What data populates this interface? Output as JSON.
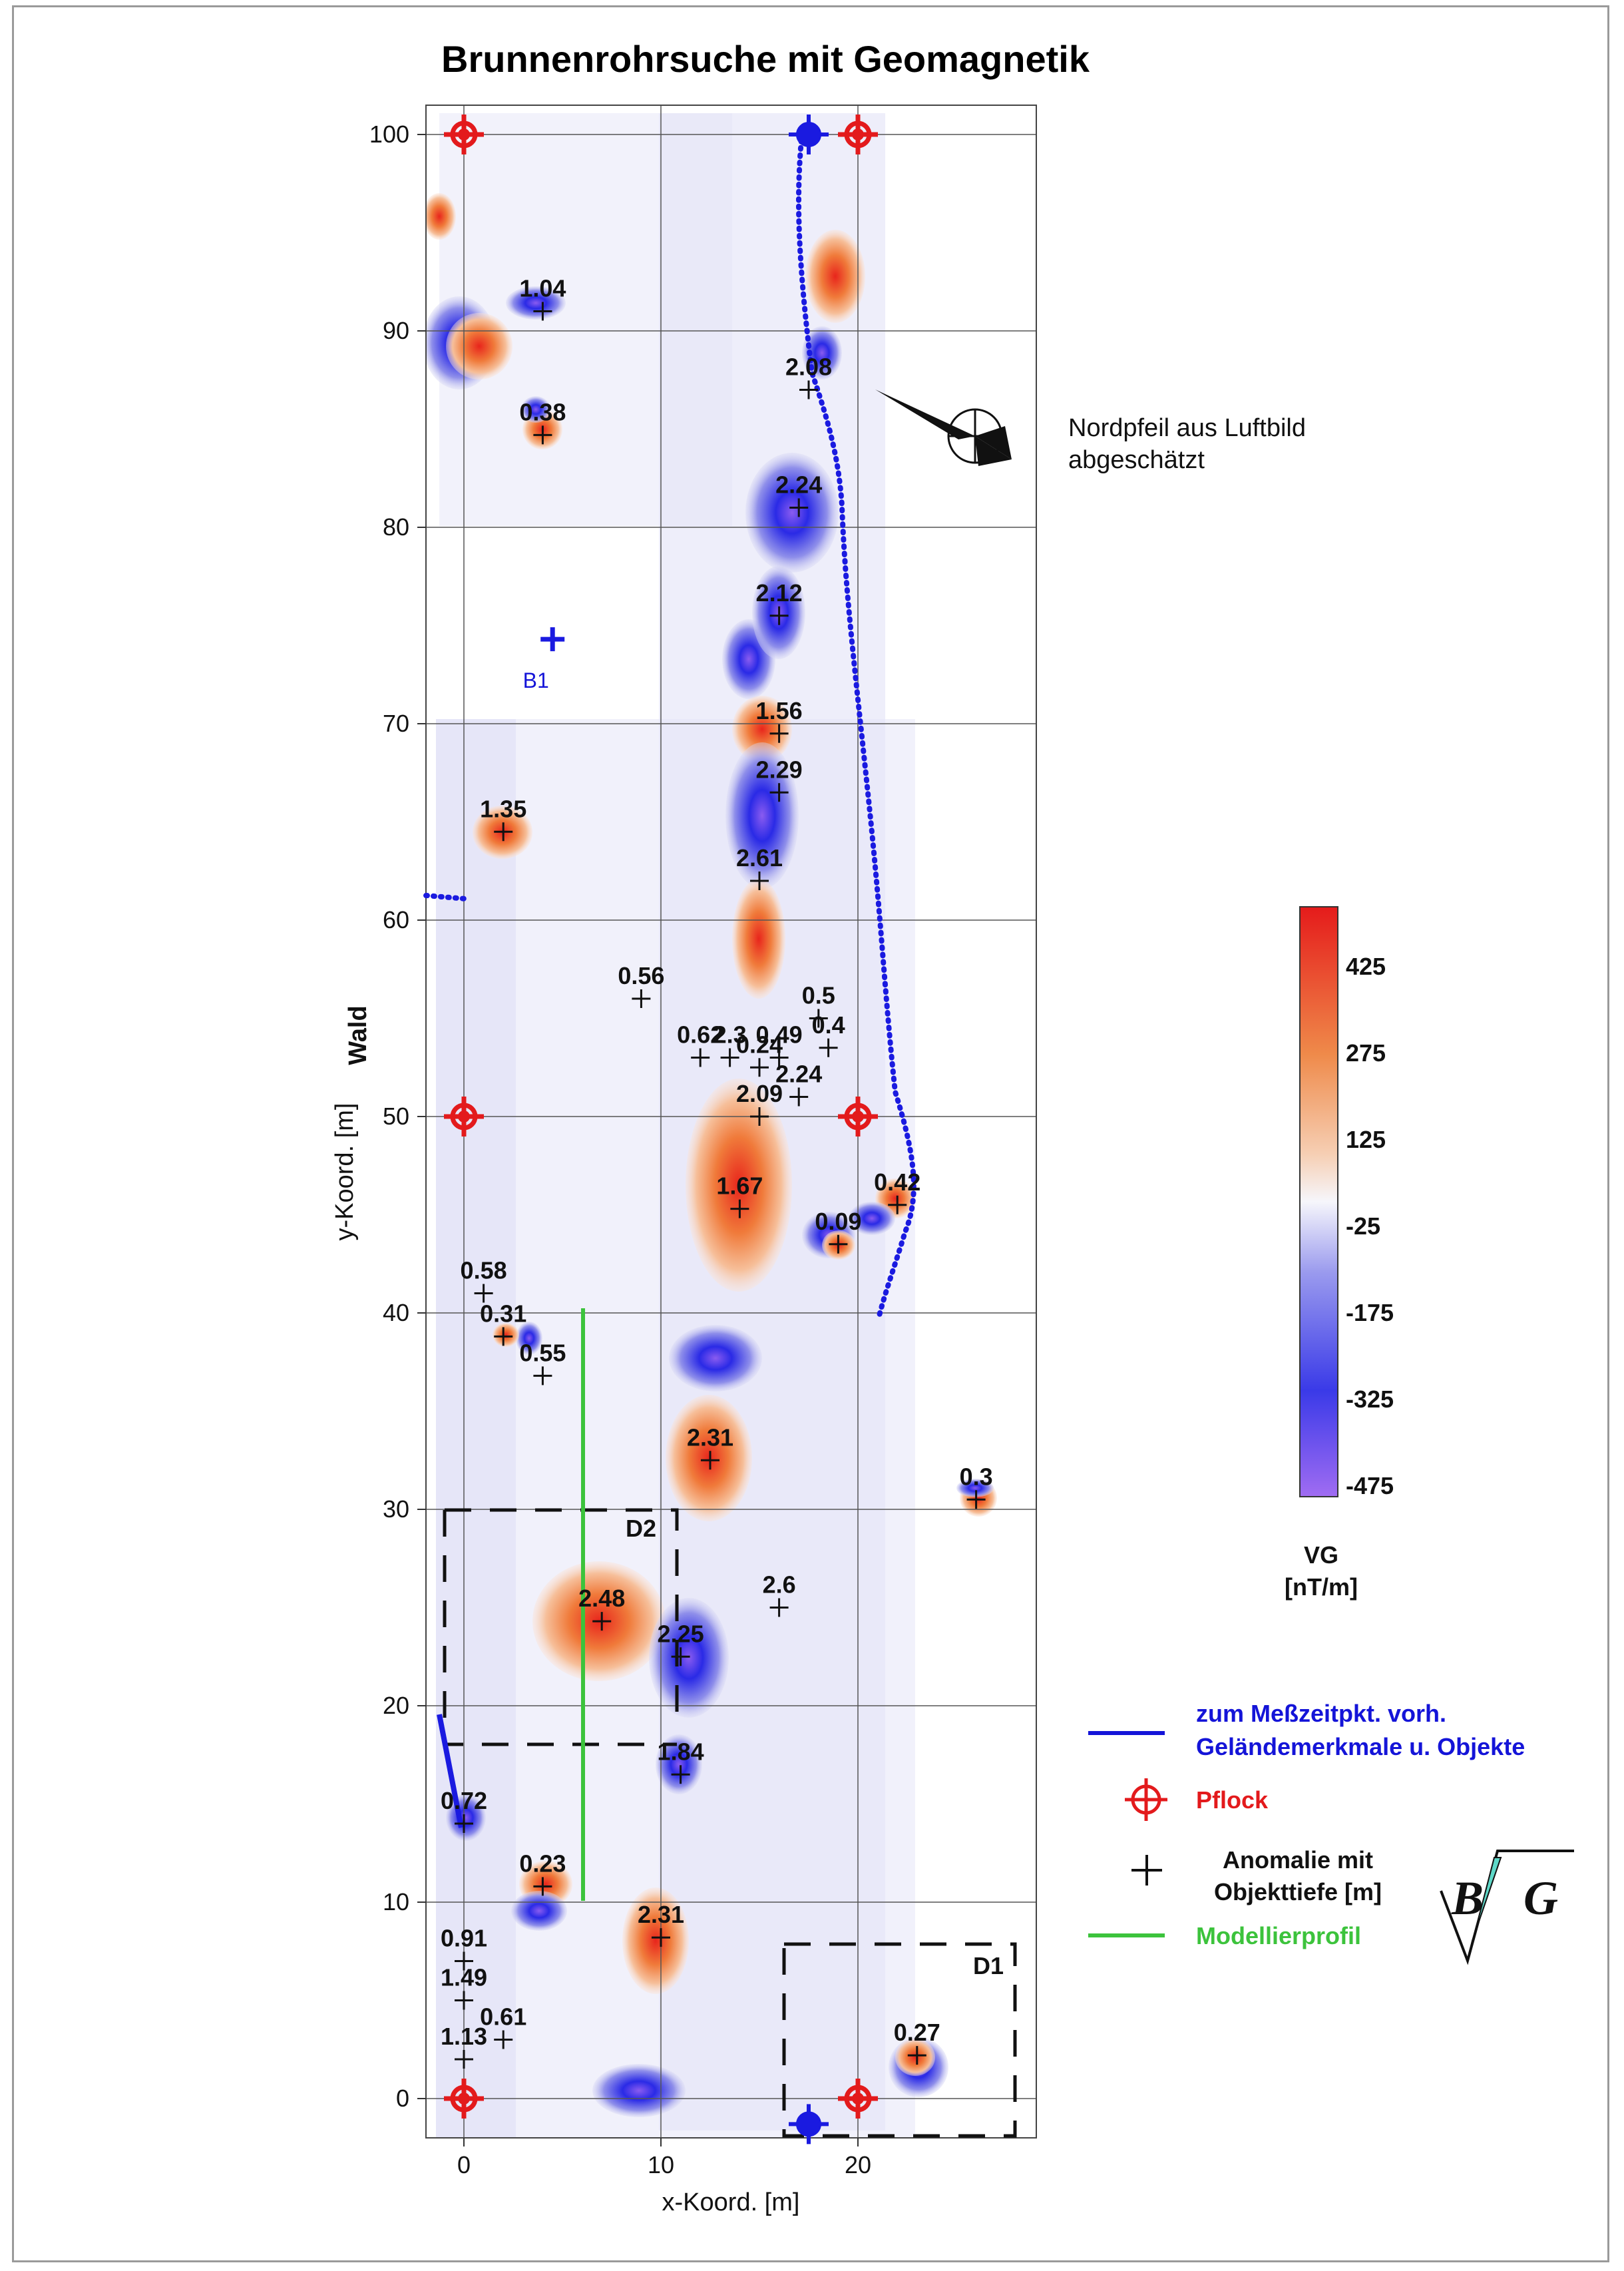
{
  "title": "Brunnenrohrsuche mit Geomagnetik",
  "axes": {
    "x_label": "x-Koord. [m]",
    "y_label": "y-Koord. [m]",
    "side_label": "Wald",
    "x_ticks": [
      "0",
      "10",
      "20"
    ],
    "y_ticks": [
      "0",
      "10",
      "20",
      "30",
      "40",
      "50",
      "60",
      "70",
      "80",
      "90",
      "100"
    ],
    "x_range": [
      -2,
      29
    ],
    "y_range": [
      -2,
      101.5
    ]
  },
  "anomalies": [
    {
      "label": "1.04",
      "x": 4,
      "y": 91
    },
    {
      "label": "0.38",
      "x": 4,
      "y": 84.7
    },
    {
      "label": "2.08",
      "x": 17.5,
      "y": 87
    },
    {
      "label": "2.24",
      "x": 17,
      "y": 81
    },
    {
      "label": "2.12",
      "x": 16,
      "y": 75.5
    },
    {
      "label": "1.56",
      "x": 16,
      "y": 69.5
    },
    {
      "label": "2.29",
      "x": 16,
      "y": 66.5
    },
    {
      "label": "2.61",
      "x": 15,
      "y": 62
    },
    {
      "label": "1.35",
      "x": 2,
      "y": 64.5
    },
    {
      "label": "0.56",
      "x": 9,
      "y": 56
    },
    {
      "label": "0.5",
      "x": 18,
      "y": 55
    },
    {
      "label": "0.4",
      "x": 18.5,
      "y": 53.5
    },
    {
      "label": "0.62",
      "x": 12,
      "y": 53
    },
    {
      "label": "2.3",
      "x": 13.5,
      "y": 53
    },
    {
      "label": "0.49",
      "x": 16,
      "y": 53
    },
    {
      "label": "0.24",
      "x": 15,
      "y": 52.5
    },
    {
      "label": "2.24",
      "x": 17,
      "y": 51
    },
    {
      "label": "2.09",
      "x": 15,
      "y": 50
    },
    {
      "label": "1.67",
      "x": 14,
      "y": 45.3
    },
    {
      "label": "0.09",
      "x": 19,
      "y": 43.5
    },
    {
      "label": "0.42",
      "x": 22,
      "y": 45.5
    },
    {
      "label": "0.58",
      "x": 1,
      "y": 41
    },
    {
      "label": "0.31",
      "x": 2,
      "y": 38.8
    },
    {
      "label": "0.55",
      "x": 4,
      "y": 36.8
    },
    {
      "label": "2.31",
      "x": 12.5,
      "y": 32.5
    },
    {
      "label": "0.3",
      "x": 26,
      "y": 30.5
    },
    {
      "label": "2.48",
      "x": 7,
      "y": 24.3
    },
    {
      "label": "2.25",
      "x": 11,
      "y": 22.5
    },
    {
      "label": "2.6",
      "x": 16,
      "y": 25
    },
    {
      "label": "1.84",
      "x": 11,
      "y": 16.5
    },
    {
      "label": "0.72",
      "x": 0,
      "y": 14
    },
    {
      "label": "0.23",
      "x": 4,
      "y": 10.8
    },
    {
      "label": "2.31",
      "x": 10,
      "y": 8.2
    },
    {
      "label": "0.91",
      "x": 0,
      "y": 7
    },
    {
      "label": "1.49",
      "x": 0,
      "y": 5
    },
    {
      "label": "0.61",
      "x": 2,
      "y": 3
    },
    {
      "label": "1.13",
      "x": 0,
      "y": 2
    },
    {
      "label": "0.27",
      "x": 23,
      "y": 2.2
    }
  ],
  "pegs": [
    {
      "x": 0,
      "y": 100
    },
    {
      "x": 20,
      "y": 100
    },
    {
      "x": 0,
      "y": 50
    },
    {
      "x": 20,
      "y": 50
    },
    {
      "x": 0,
      "y": 0
    },
    {
      "x": 20,
      "y": 0
    }
  ],
  "blue_features": [
    {
      "x": 17.5,
      "y": 100
    },
    {
      "x": 17.5,
      "y": -1.3
    }
  ],
  "b1_marker": {
    "label": "B1",
    "x": 4.5,
    "y": 74.3
  },
  "regions": [
    {
      "label": "D2"
    },
    {
      "label": "D1"
    }
  ],
  "north_arrow": {
    "text_line1": "Nordpfeil aus Luftbild",
    "text_line2": "abgeschätzt"
  },
  "colorbar": {
    "ticks": [
      "425",
      "275",
      "125",
      "-25",
      "-175",
      "-325",
      "-475"
    ],
    "title_line1": "VG",
    "title_line2": "[nT/m]",
    "range": [
      -500,
      500
    ]
  },
  "legend": {
    "features_line1": "zum Meßzeitpkt. vorh.",
    "features_line2": "Geländemerkmale u. Objekte",
    "pegs": "Pflock",
    "anomaly_line1": "Anomalie mit",
    "anomaly_line2": "Objekttiefe [m]",
    "profile": "Modellierprofil"
  },
  "logo": {
    "text": "BG"
  },
  "colors": {
    "positive": "#e8251c",
    "negative": "#1f1fe6",
    "peg": "#e31a1c",
    "path": "#1a1ae0",
    "profile": "#3cc33c",
    "legend_blue": "#1414d8",
    "legend_green": "#3cc33c"
  }
}
